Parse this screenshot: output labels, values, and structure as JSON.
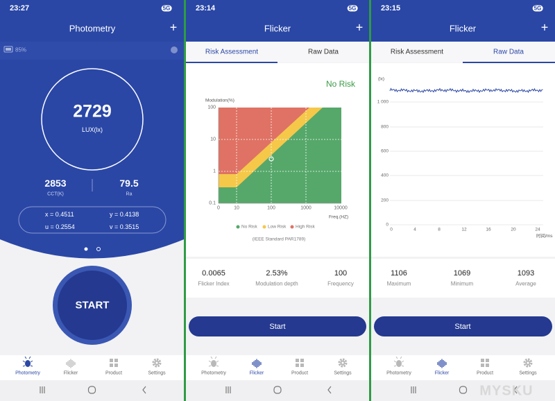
{
  "screens": [
    {
      "status": {
        "time": "23:27",
        "network": "5G"
      },
      "header": {
        "title": "Photometry",
        "action": "+"
      },
      "battery": "85%",
      "lux": {
        "value": "2729",
        "unit": "LUX(lx)"
      },
      "cct": {
        "value": "2853",
        "label": "CCT(K)"
      },
      "ra": {
        "value": "79.5",
        "label": "Ra"
      },
      "coords": [
        "x = 0.4511",
        "y = 0.4138",
        "u = 0.2554",
        "v = 0.3515"
      ],
      "start": "START",
      "nav": [
        "Photometry",
        "Flicker",
        "Product",
        "Settings"
      ]
    },
    {
      "status": {
        "time": "23:14",
        "network": "5G"
      },
      "header": {
        "title": "Flicker",
        "action": "+"
      },
      "tabs": [
        "Risk Assessment",
        "Raw Data"
      ],
      "risk": "No Risk",
      "chart": {
        "y_label": "Modulation(%)",
        "yticks": [
          "100",
          "10",
          "1",
          "0.1"
        ],
        "xticks": [
          "0",
          "10",
          "100",
          "1000",
          "10000"
        ],
        "x_label": "Freq.(HZ)",
        "legend": [
          "No Risk",
          "Low Risk",
          "High Risk"
        ],
        "note": "(IEEE Standard PAR1789)"
      },
      "stats": [
        {
          "value": "0.0065",
          "label": "Flicker Index"
        },
        {
          "value": "2.53%",
          "label": "Modulation depth"
        },
        {
          "value": "100",
          "label": "Frequency"
        }
      ],
      "button": "Start",
      "nav": [
        "Photometry",
        "Flicker",
        "Product",
        "Settings"
      ]
    },
    {
      "status": {
        "time": "23:15",
        "network": "5G"
      },
      "header": {
        "title": "Flicker",
        "action": "+"
      },
      "tabs": [
        "Risk Assessment",
        "Raw Data"
      ],
      "chart": {
        "y_label": "(lx)",
        "yticks": [
          "1 000",
          "800",
          "600",
          "400",
          "200",
          "0"
        ],
        "xticks": [
          "0",
          "4",
          "8",
          "12",
          "16",
          "20",
          "24"
        ],
        "x_label": "时间/ms"
      },
      "stats": [
        {
          "value": "1106",
          "label": "Maximum"
        },
        {
          "value": "1069",
          "label": "Minimum"
        },
        {
          "value": "1093",
          "label": "Average"
        }
      ],
      "button": "Start",
      "nav": [
        "Photometry",
        "Flicker",
        "Product",
        "Settings"
      ]
    }
  ],
  "watermark": "MYSKU"
}
